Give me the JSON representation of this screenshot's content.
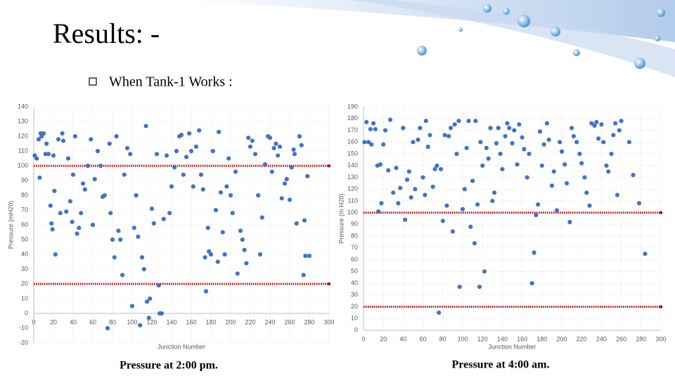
{
  "slide": {
    "title": "Results: -",
    "bullet": "When Tank-1 Works :"
  },
  "chart_data": [
    {
      "type": "scatter",
      "caption": "Pressure at 2:00 pm.",
      "x_label": "Junction Number",
      "y_label": "Pressure (mH20)",
      "color": "#4472c4",
      "grid": true,
      "xlim": [
        0,
        300
      ],
      "xticks": [
        0,
        20,
        40,
        60,
        80,
        100,
        120,
        140,
        160,
        180,
        200,
        220,
        240,
        260,
        280,
        300
      ],
      "ylim": [
        -20,
        140
      ],
      "yticks": [
        -20,
        -10,
        0,
        10,
        20,
        30,
        40,
        50,
        60,
        70,
        80,
        90,
        100,
        110,
        120,
        130,
        140
      ],
      "reference_lines": [
        {
          "value": 20,
          "color": "#c00000"
        },
        {
          "value": 100,
          "color": "#c00000"
        }
      ],
      "x": [
        1,
        3,
        5,
        6,
        7,
        8,
        10,
        12,
        13,
        15,
        17,
        18,
        19,
        20,
        21,
        22,
        25,
        27,
        29,
        30,
        33,
        35,
        37,
        39,
        40,
        42,
        44,
        46,
        48,
        50,
        52,
        55,
        58,
        60,
        62,
        65,
        68,
        70,
        72,
        75,
        77,
        78,
        80,
        82,
        84,
        86,
        88,
        90,
        92,
        95,
        98,
        100,
        102,
        104,
        106,
        108,
        110,
        112,
        114,
        115,
        117,
        118,
        120,
        122,
        125,
        127,
        128,
        130,
        132,
        135,
        138,
        140,
        143,
        145,
        148,
        150,
        152,
        155,
        158,
        160,
        162,
        165,
        168,
        170,
        172,
        174,
        175,
        177,
        178,
        180,
        182,
        185,
        187,
        188,
        190,
        192,
        194,
        196,
        198,
        200,
        202,
        205,
        207,
        210,
        212,
        214,
        216,
        218,
        220,
        222,
        225,
        228,
        230,
        232,
        235,
        238,
        240,
        242,
        244,
        246,
        248,
        250,
        252,
        255,
        257,
        260,
        262,
        264,
        265,
        267,
        270,
        272,
        274,
        275,
        276,
        278,
        280
      ],
      "values": [
        107,
        105,
        118,
        92,
        122,
        120,
        122,
        108,
        115,
        108,
        73,
        61,
        57,
        107,
        83,
        40,
        118,
        68,
        122,
        117,
        69,
        105,
        76,
        62,
        94,
        120,
        54,
        58,
        68,
        88,
        84,
        100,
        118,
        60,
        91,
        110,
        100,
        79,
        80,
        -10,
        115,
        68,
        50,
        38,
        120,
        56,
        50,
        26,
        94,
        112,
        108,
        5,
        58,
        80,
        52,
        -8,
        38,
        30,
        127,
        8,
        -3,
        10,
        71,
        61,
        108,
        19,
        0,
        0,
        64,
        107,
        68,
        86,
        99,
        110,
        120,
        121,
        94,
        106,
        122,
        110,
        86,
        113,
        124,
        94,
        84,
        38,
        15,
        58,
        42,
        40,
        110,
        70,
        35,
        123,
        82,
        55,
        40,
        86,
        105,
        80,
        68,
        96,
        27,
        56,
        50,
        43,
        34,
        119,
        113,
        117,
        108,
        80,
        40,
        65,
        101,
        120,
        119,
        96,
        112,
        115,
        107,
        113,
        78,
        88,
        91,
        77,
        99,
        111,
        108,
        61,
        120,
        114,
        26,
        63,
        39,
        93,
        39
      ]
    },
    {
      "type": "scatter",
      "caption": "Pressure at 4:00 am.",
      "x_label": "Junction Number",
      "y_label": "Pressure (m H20)",
      "color": "#4472c4",
      "grid": true,
      "xlim": [
        0,
        300
      ],
      "xticks": [
        0,
        20,
        40,
        60,
        80,
        100,
        120,
        140,
        160,
        180,
        200,
        220,
        240,
        260,
        280,
        300
      ],
      "ylim": [
        0,
        190
      ],
      "yticks": [
        0,
        10,
        20,
        30,
        40,
        50,
        60,
        70,
        80,
        90,
        100,
        110,
        120,
        130,
        140,
        150,
        160,
        170,
        180,
        190
      ],
      "reference_lines": [
        {
          "value": 20,
          "color": "#c00000"
        },
        {
          "value": 100,
          "color": "#c00000"
        }
      ],
      "x": [
        1,
        3,
        5,
        7,
        8,
        10,
        12,
        14,
        15,
        17,
        18,
        20,
        22,
        25,
        27,
        30,
        33,
        35,
        37,
        40,
        42,
        44,
        46,
        48,
        50,
        52,
        55,
        57,
        60,
        62,
        63,
        65,
        67,
        70,
        72,
        74,
        76,
        78,
        80,
        82,
        84,
        86,
        88,
        90,
        92,
        94,
        96,
        97,
        100,
        102,
        104,
        106,
        108,
        110,
        112,
        113,
        115,
        117,
        118,
        120,
        122,
        124,
        126,
        128,
        130,
        132,
        134,
        136,
        138,
        140,
        143,
        145,
        147,
        150,
        152,
        155,
        157,
        160,
        162,
        165,
        167,
        170,
        172,
        174,
        176,
        178,
        180,
        182,
        185,
        187,
        190,
        192,
        195,
        198,
        200,
        203,
        205,
        208,
        210,
        212,
        215,
        218,
        220,
        223,
        225,
        228,
        230,
        233,
        235,
        237,
        240,
        242,
        245,
        247,
        250,
        252,
        254,
        256,
        258,
        260,
        272,
        278,
        284,
        268
      ],
      "values": [
        160,
        177,
        160,
        171,
        158,
        176,
        171,
        140,
        101,
        141,
        108,
        158,
        170,
        136,
        179,
        117,
        138,
        108,
        121,
        172,
        94,
        128,
        135,
        113,
        160,
        120,
        162,
        172,
        130,
        115,
        178,
        156,
        166,
        122,
        137,
        140,
        15,
        137,
        93,
        166,
        106,
        165,
        172,
        84,
        175,
        150,
        178,
        37,
        103,
        120,
        155,
        178,
        88,
        127,
        74,
        178,
        107,
        37,
        160,
        140,
        50,
        155,
        146,
        172,
        110,
        117,
        159,
        172,
        150,
        137,
        165,
        176,
        172,
        159,
        170,
        141,
        175,
        164,
        154,
        130,
        150,
        40,
        66,
        98,
        107,
        169,
        140,
        158,
        176,
        162,
        123,
        135,
        102,
        160,
        152,
        141,
        125,
        92,
        172,
        165,
        160,
        150,
        142,
        130,
        117,
        106,
        176,
        174,
        177,
        163,
        175,
        160,
        140,
        135,
        150,
        166,
        176,
        115,
        170,
        178,
        132,
        108,
        65,
        160
      ]
    }
  ]
}
